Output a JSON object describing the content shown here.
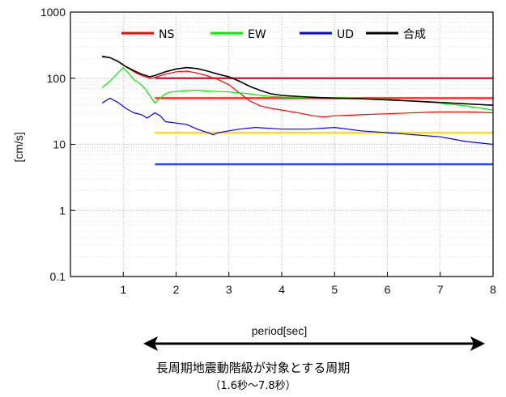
{
  "chart_data": {
    "type": "line",
    "xlabel": "period[sec]",
    "ylabel": "[cm/s]",
    "x_scale": "linear",
    "y_scale": "log",
    "xlim": [
      0,
      8
    ],
    "ylim": [
      0.1,
      1000
    ],
    "x_ticks": [
      "1",
      "2",
      "3",
      "4",
      "5",
      "6",
      "7",
      "8"
    ],
    "y_ticks": [
      "0.1",
      "1",
      "10",
      "100",
      "1000"
    ],
    "grid": true,
    "legend_position": "top",
    "series": [
      {
        "name": "NS",
        "color": "#ff0000",
        "x": [
          0.6,
          0.75,
          0.9,
          1.05,
          1.2,
          1.35,
          1.5,
          1.6,
          1.8,
          2.0,
          2.2,
          2.4,
          2.6,
          2.8,
          3.0,
          3.2,
          3.4,
          3.6,
          3.8,
          4.0,
          4.2,
          4.4,
          4.6,
          4.8,
          5.0,
          5.5,
          6.0,
          6.5,
          7.0,
          7.5,
          8.0
        ],
        "y": [
          210,
          205,
          180,
          150,
          125,
          110,
          100,
          103,
          115,
          125,
          128,
          120,
          108,
          95,
          80,
          60,
          45,
          38,
          35,
          33,
          31,
          29,
          27,
          26,
          27,
          28,
          29,
          30,
          31,
          31,
          30
        ]
      },
      {
        "name": "EW",
        "color": "#00ee00",
        "x": [
          0.6,
          0.75,
          0.9,
          1.0,
          1.1,
          1.2,
          1.3,
          1.4,
          1.5,
          1.6,
          1.7,
          1.8,
          1.9,
          2.0,
          2.2,
          2.4,
          2.6,
          2.8,
          3.0,
          3.2,
          3.4,
          3.6,
          3.8,
          4.0,
          4.5,
          5.0,
          5.5,
          6.0,
          6.5,
          7.0,
          7.5,
          8.0
        ],
        "y": [
          72,
          90,
          120,
          145,
          120,
          95,
          85,
          72,
          55,
          42,
          50,
          58,
          62,
          63,
          65,
          66,
          64,
          63,
          62,
          60,
          58,
          55,
          53,
          52,
          51,
          51,
          50,
          48,
          45,
          42,
          38,
          33
        ]
      },
      {
        "name": "UD",
        "color": "#0000ff",
        "x": [
          0.6,
          0.75,
          0.9,
          1.05,
          1.2,
          1.35,
          1.45,
          1.6,
          1.7,
          1.8,
          2.0,
          2.2,
          2.4,
          2.6,
          2.7,
          2.8,
          3.0,
          3.2,
          3.5,
          4.0,
          4.5,
          5.0,
          5.5,
          6.0,
          6.5,
          7.0,
          7.5,
          8.0
        ],
        "y": [
          42,
          50,
          43,
          35,
          30,
          28,
          25,
          30,
          27,
          22,
          21,
          20,
          17,
          15,
          14,
          15,
          16,
          17,
          18,
          17,
          17,
          18,
          16,
          15,
          14,
          13,
          11,
          10
        ]
      },
      {
        "name": "合成",
        "color": "#000000",
        "x": [
          0.6,
          0.75,
          0.9,
          1.05,
          1.2,
          1.35,
          1.5,
          1.6,
          1.8,
          2.0,
          2.2,
          2.4,
          2.6,
          2.8,
          3.0,
          3.2,
          3.4,
          3.6,
          3.8,
          4.0,
          4.5,
          5.0,
          5.5,
          6.0,
          6.5,
          7.0,
          7.5,
          8.0
        ],
        "y": [
          215,
          205,
          180,
          150,
          130,
          115,
          105,
          110,
          125,
          138,
          145,
          140,
          128,
          115,
          105,
          90,
          75,
          65,
          58,
          55,
          52,
          50,
          49,
          47,
          45,
          43,
          41,
          39
        ]
      }
    ],
    "reference_lines": [
      {
        "color": "#e31b45",
        "y": 100,
        "x_start": 1.6,
        "x_end": 8.0
      },
      {
        "color": "#ff3030",
        "y": 50,
        "x_start": 1.6,
        "x_end": 8.0
      },
      {
        "color": "#ffe000",
        "y": 15,
        "x_start": 1.6,
        "x_end": 8.0
      },
      {
        "color": "#2a4fff",
        "y": 5,
        "x_start": 1.6,
        "x_end": 8.0
      }
    ]
  },
  "caption": {
    "main": "長周期地震動階級が対象とする周期",
    "sub": "（1.6秒～7.8秒）"
  }
}
